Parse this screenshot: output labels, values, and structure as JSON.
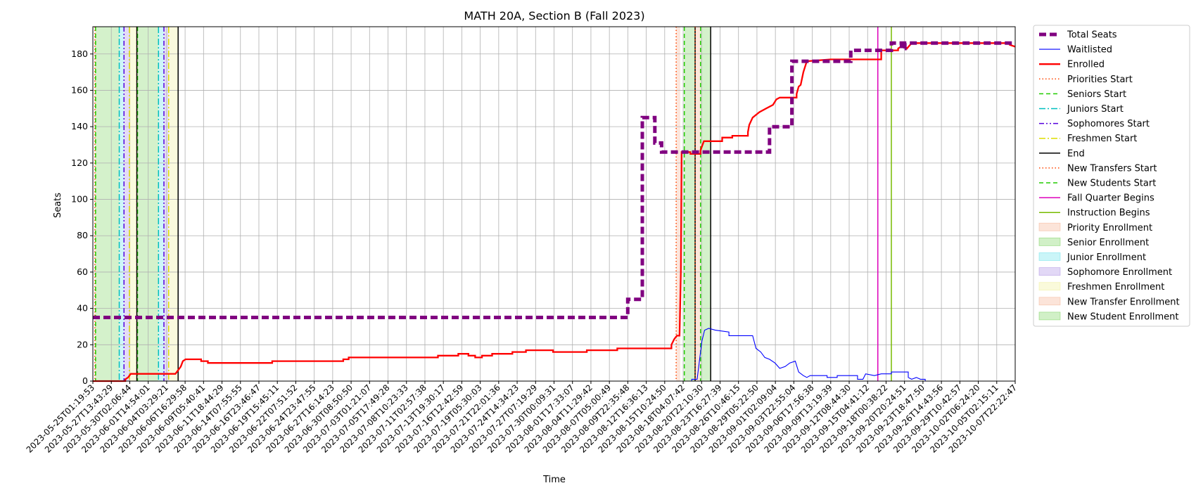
{
  "chart_data": {
    "type": "line",
    "title": "MATH 20A, Section B (Fall 2023)",
    "xlabel": "Time",
    "ylabel": "Seats",
    "ylim": [
      0,
      195
    ],
    "yticks": [
      0,
      20,
      40,
      60,
      80,
      100,
      120,
      140,
      160,
      180
    ],
    "grid": true,
    "legend_position": "outside-right",
    "xlim_days": [
      0,
      136.3
    ],
    "xtick_labels": [
      "2023-05-25T01:19:53",
      "2023-05-27T13:43:29",
      "2023-05-30T02:06:44",
      "2023-06-01T14:54:01",
      "2023-06-04T03:29:21",
      "2023-06-06T16:29:58",
      "2023-06-09T05:40:41",
      "2023-06-11T18:44:29",
      "2023-06-14T07:55:55",
      "2023-06-16T23:46:47",
      "2023-06-19T15:45:11",
      "2023-06-22T07:51:52",
      "2023-06-24T23:47:55",
      "2023-06-27T16:14:23",
      "2023-06-30T08:50:50",
      "2023-07-03T01:21:07",
      "2023-07-05T17:49:28",
      "2023-07-08T10:23:33",
      "2023-07-11T02:57:38",
      "2023-07-13T19:30:17",
      "2023-07-16T12:42:59",
      "2023-07-19T05:30:03",
      "2023-07-21T22:01:36",
      "2023-07-24T14:34:23",
      "2023-07-27T07:19:29",
      "2023-07-30T00:09:31",
      "2023-08-01T17:33:07",
      "2023-08-04T11:29:42",
      "2023-08-07T05:00:49",
      "2023-08-09T22:35:48",
      "2023-08-12T16:36:13",
      "2023-08-15T10:24:50",
      "2023-08-18T04:07:42",
      "2023-08-20T22:10:30",
      "2023-08-23T16:27:39",
      "2023-08-26T10:46:15",
      "2023-08-29T05:22:50",
      "2023-09-01T02:09:04",
      "2023-09-03T22:55:04",
      "2023-09-06T17:56:38",
      "2023-09-09T13:19:39",
      "2023-09-12T08:44:30",
      "2023-09-15T04:41:12",
      "2023-09-18T00:38:22",
      "2023-09-20T20:24:51",
      "2023-09-23T18:47:50",
      "2023-09-26T14:43:56",
      "2023-09-29T10:42:57",
      "2023-10-02T06:24:20",
      "2023-10-05T02:15:11",
      "2023-10-07T22:22:47"
    ],
    "series": [
      {
        "name": "Total Seats",
        "color": "#800080",
        "style": "dashed-thick",
        "points": [
          [
            0,
            35
          ],
          [
            79.05,
            35
          ],
          [
            79.05,
            45
          ],
          [
            81.2,
            45
          ],
          [
            81.2,
            145
          ],
          [
            83.05,
            145
          ],
          [
            83.05,
            131
          ],
          [
            84.05,
            131
          ],
          [
            84.05,
            126
          ],
          [
            100.0,
            126
          ],
          [
            100.0,
            140
          ],
          [
            103.3,
            140
          ],
          [
            103.3,
            176
          ],
          [
            112.0,
            176
          ],
          [
            112.0,
            182
          ],
          [
            118.0,
            182
          ],
          [
            118.0,
            186
          ],
          [
            119.5,
            186
          ],
          [
            119.5,
            183
          ],
          [
            120.0,
            183
          ],
          [
            120.0,
            186
          ],
          [
            136.3,
            186
          ]
        ]
      },
      {
        "name": "Waitlisted",
        "color": "#0000ff",
        "style": "solid-thin",
        "points": [
          [
            0,
            0
          ],
          [
            88.5,
            0
          ],
          [
            88.5,
            1
          ],
          [
            89.3,
            1
          ],
          [
            89.6,
            10
          ],
          [
            90.0,
            22
          ],
          [
            90.4,
            28
          ],
          [
            91.0,
            29
          ],
          [
            92.0,
            28
          ],
          [
            94.0,
            27
          ],
          [
            94.0,
            25
          ],
          [
            96.5,
            25
          ],
          [
            97.5,
            25
          ],
          [
            98.0,
            18
          ],
          [
            98.7,
            16
          ],
          [
            99.3,
            13
          ],
          [
            100.0,
            12
          ],
          [
            100.8,
            10
          ],
          [
            101.5,
            7
          ],
          [
            102.3,
            8
          ],
          [
            103.0,
            10
          ],
          [
            103.8,
            11
          ],
          [
            104.3,
            5
          ],
          [
            105.0,
            3
          ],
          [
            105.5,
            2
          ],
          [
            106.0,
            3
          ],
          [
            108.5,
            3
          ],
          [
            108.5,
            2
          ],
          [
            110.0,
            2
          ],
          [
            110.0,
            3
          ],
          [
            113.0,
            3
          ],
          [
            113.0,
            1
          ],
          [
            113.8,
            1
          ],
          [
            114.2,
            4
          ],
          [
            115.5,
            3
          ],
          [
            116.5,
            4
          ],
          [
            118.0,
            4
          ],
          [
            118.0,
            5
          ],
          [
            120.5,
            5
          ],
          [
            120.5,
            2
          ],
          [
            121.0,
            1
          ],
          [
            121.7,
            2
          ],
          [
            122.3,
            1
          ],
          [
            123.0,
            1
          ],
          [
            123.0,
            0
          ],
          [
            136.3,
            0
          ]
        ]
      },
      {
        "name": "Enrolled",
        "color": "#ff0000",
        "style": "solid-thick",
        "points": [
          [
            0,
            0
          ],
          [
            4.8,
            0
          ],
          [
            4.8,
            1
          ],
          [
            5.2,
            2
          ],
          [
            5.6,
            4
          ],
          [
            12.2,
            4
          ],
          [
            12.6,
            6
          ],
          [
            13.0,
            8
          ],
          [
            13.3,
            11
          ],
          [
            13.7,
            12
          ],
          [
            16.0,
            12
          ],
          [
            16.0,
            11
          ],
          [
            17.0,
            11
          ],
          [
            17.0,
            10
          ],
          [
            26.5,
            10
          ],
          [
            26.5,
            11
          ],
          [
            37.0,
            11
          ],
          [
            37.0,
            12
          ],
          [
            37.8,
            12
          ],
          [
            37.8,
            13
          ],
          [
            51.0,
            13
          ],
          [
            51.0,
            14
          ],
          [
            54.0,
            14
          ],
          [
            54.0,
            15
          ],
          [
            55.5,
            15
          ],
          [
            55.5,
            14
          ],
          [
            56.5,
            14
          ],
          [
            56.5,
            13
          ],
          [
            57.5,
            13
          ],
          [
            57.5,
            14
          ],
          [
            59.0,
            14
          ],
          [
            59.0,
            15
          ],
          [
            62.0,
            15
          ],
          [
            62.0,
            16
          ],
          [
            64.0,
            16
          ],
          [
            64.0,
            17
          ],
          [
            68.0,
            17
          ],
          [
            68.0,
            16
          ],
          [
            73.0,
            16
          ],
          [
            73.0,
            17
          ],
          [
            77.5,
            17
          ],
          [
            77.5,
            18
          ],
          [
            85.5,
            18
          ],
          [
            85.5,
            20
          ],
          [
            85.9,
            23
          ],
          [
            86.3,
            25
          ],
          [
            86.7,
            25
          ],
          [
            86.9,
            60
          ],
          [
            87.0,
            126
          ],
          [
            88.3,
            126
          ],
          [
            88.3,
            125
          ],
          [
            89.8,
            125
          ],
          [
            89.8,
            127
          ],
          [
            90.3,
            132
          ],
          [
            93.0,
            132
          ],
          [
            93.0,
            134
          ],
          [
            94.5,
            134
          ],
          [
            94.5,
            135
          ],
          [
            96.8,
            135
          ],
          [
            96.8,
            137
          ],
          [
            97.0,
            141
          ],
          [
            97.5,
            145
          ],
          [
            98.5,
            148
          ],
          [
            99.5,
            150
          ],
          [
            100.5,
            152
          ],
          [
            101.0,
            155
          ],
          [
            101.5,
            156
          ],
          [
            102.5,
            156
          ],
          [
            104.0,
            156
          ],
          [
            104.0,
            158
          ],
          [
            104.3,
            162
          ],
          [
            104.6,
            163
          ],
          [
            105.0,
            170
          ],
          [
            105.5,
            176
          ],
          [
            109.0,
            177
          ],
          [
            116.5,
            177
          ],
          [
            116.5,
            182
          ],
          [
            119.0,
            182
          ],
          [
            119.0,
            183
          ],
          [
            119.8,
            185
          ],
          [
            120.3,
            183
          ],
          [
            121.0,
            186
          ],
          [
            135.5,
            186
          ],
          [
            135.5,
            185
          ],
          [
            136.3,
            184
          ]
        ]
      }
    ],
    "enrollment_periods": [
      {
        "name": "Priority Enrollment",
        "color": "#f4a582",
        "spans": [
          [
            0.3,
            0.4
          ],
          [
            6.5,
            6.6
          ],
          [
            86.2,
            86.8
          ]
        ]
      },
      {
        "name": "Senior Enrollment",
        "color": "#66cc44",
        "spans": [
          [
            0.4,
            3.9
          ],
          [
            6.6,
            9.7
          ]
        ]
      },
      {
        "name": "Junior Enrollment",
        "color": "#4fdde8",
        "spans": [
          [
            3.9,
            4.6
          ],
          [
            9.7,
            10.5
          ]
        ]
      },
      {
        "name": "Sophomore Enrollment",
        "color": "#9f7fe0",
        "spans": [
          [
            4.6,
            5.4
          ],
          [
            10.5,
            11.2
          ]
        ]
      },
      {
        "name": "Freshmen Enrollment",
        "color": "#eeee88",
        "spans": [
          [
            5.4,
            6.5
          ],
          [
            11.2,
            12.6
          ]
        ]
      },
      {
        "name": "New Transfer Enrollment",
        "color": "#f4a582",
        "spans": [
          [
            89.0,
            89.8
          ]
        ]
      },
      {
        "name": "New Student Enrollment",
        "color": "#66cc44",
        "spans": [
          [
            87.4,
            89.0
          ],
          [
            89.8,
            91.3
          ]
        ]
      }
    ],
    "event_lines": [
      {
        "name": "Priorities Start",
        "color": "#ff4400",
        "style": "dotted",
        "x": [
          0.3,
          6.5,
          86.2
        ]
      },
      {
        "name": "Seniors Start",
        "color": "#22cc00",
        "style": "dashed",
        "x": [
          0.4,
          6.6,
          87.4
        ]
      },
      {
        "name": "Juniors Start",
        "color": "#00bfbf",
        "style": "dashdot",
        "x": [
          3.9,
          9.7
        ]
      },
      {
        "name": "Sophomores Start",
        "color": "#5500dd",
        "style": "dashdotdot",
        "x": [
          4.6,
          10.5
        ]
      },
      {
        "name": "Freshmen Start",
        "color": "#dddd00",
        "style": "dashdot",
        "x": [
          5.4,
          11.2
        ]
      },
      {
        "name": "End",
        "color": "#000000",
        "style": "solid",
        "x": [
          6.5,
          12.6,
          89.0,
          91.3
        ]
      },
      {
        "name": "New Transfers Start",
        "color": "#ff4400",
        "style": "dotted",
        "x": [
          89.0
        ]
      },
      {
        "name": "New Students Start",
        "color": "#22cc00",
        "style": "dashed",
        "x": [
          89.8
        ]
      },
      {
        "name": "Fall Quarter Begins",
        "color": "#dd00bb",
        "style": "solid",
        "x": [
          116.0
        ]
      },
      {
        "name": "Instruction Begins",
        "color": "#77bb00",
        "style": "solid",
        "x": [
          118.0
        ]
      }
    ]
  }
}
